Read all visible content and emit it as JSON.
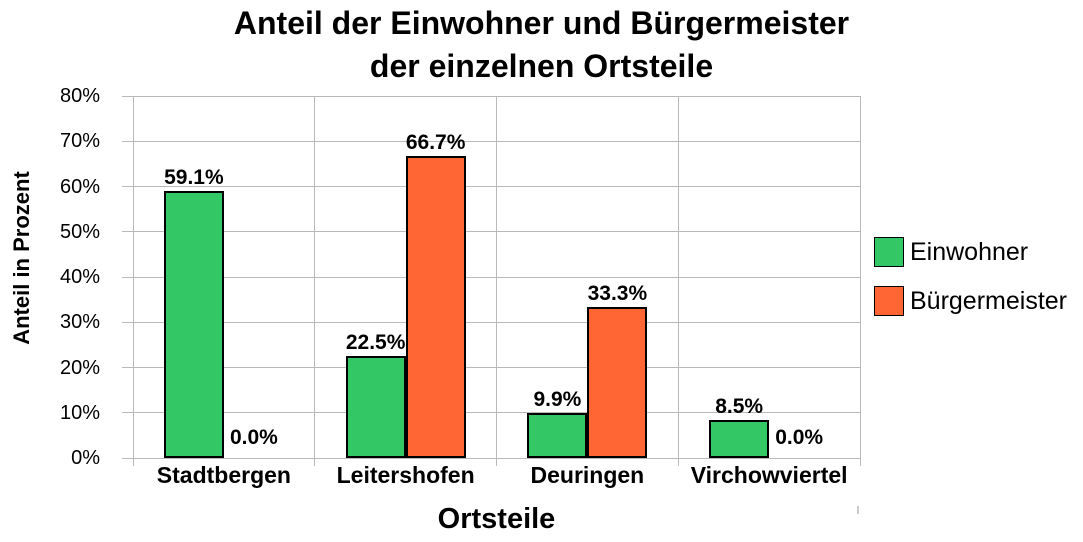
{
  "chart_data": {
    "type": "bar",
    "title": "Anteil der Einwohner und Bürgermeister der einzelnen Ortsteile",
    "title_lines": [
      "Anteil der Einwohner und Bürgermeister",
      "der einzelnen Ortsteile"
    ],
    "xlabel": "Ortsteile",
    "ylabel": "Anteil in Prozent",
    "categories": [
      "Stadtbergen",
      "Leitershofen",
      "Deuringen",
      "Virchowviertel"
    ],
    "series": [
      {
        "name": "Einwohner",
        "color": "#34c766",
        "values": [
          59.1,
          22.5,
          9.9,
          8.5
        ],
        "labels": [
          "59.1%",
          "22.5%",
          "9.9%",
          "8.5%"
        ]
      },
      {
        "name": "Bürgermeister",
        "color": "#ff6633",
        "values": [
          0.0,
          66.7,
          33.3,
          0.0
        ],
        "labels": [
          "0.0%",
          "66.7%",
          "33.3%",
          "0.0%"
        ]
      }
    ],
    "ylim": [
      0,
      80
    ],
    "ytick_step": 10,
    "ytick_suffix": "%",
    "grid": true,
    "legend_position": "right",
    "colors": {
      "grid": "#b9b9b9",
      "bar_border": "#000000",
      "text": "#000000",
      "background": "#ffffff"
    }
  }
}
